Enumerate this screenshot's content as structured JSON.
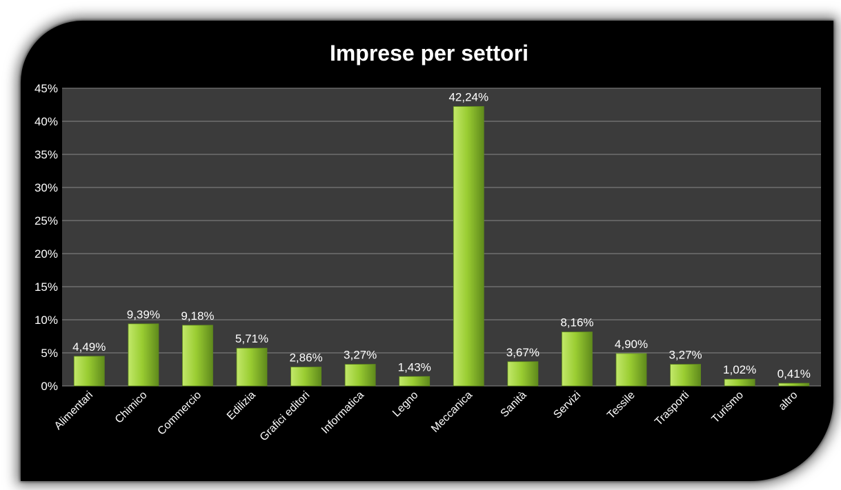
{
  "chart_data": {
    "type": "bar",
    "title": "Imprese per settori",
    "xlabel": "",
    "ylabel": "",
    "ylim": [
      0,
      45
    ],
    "yticks": [
      "0%",
      "5%",
      "10%",
      "15%",
      "20%",
      "25%",
      "30%",
      "35%",
      "40%",
      "45%"
    ],
    "grid": true,
    "legend": "none",
    "categories": [
      "Alimentari",
      "Chimico",
      "Commercio",
      "Edilizia",
      "Grafici editori",
      "Informatica",
      "Legno",
      "Meccanica",
      "Sanità",
      "Servizi",
      "Tessile",
      "Trasporti",
      "Turismo",
      "altro"
    ],
    "values": [
      4.49,
      9.39,
      9.18,
      5.71,
      2.86,
      3.27,
      1.43,
      42.24,
      3.67,
      8.16,
      4.9,
      3.27,
      1.02,
      0.41
    ],
    "data_labels": [
      "4,49%",
      "9,39%",
      "9,18%",
      "5,71%",
      "2,86%",
      "3,27%",
      "1,43%",
      "42,24%",
      "3,67%",
      "8,16%",
      "4,90%",
      "3,27%",
      "1,02%",
      "0,41%"
    ]
  },
  "colors": {
    "background": "#000000",
    "plot_area": "#3b3b3b",
    "gridline": "#8a8a8a",
    "bar_light": "#c2e86a",
    "bar_mid": "#9acd32",
    "bar_dark": "#5f8a1c",
    "text": "#ffffff"
  }
}
